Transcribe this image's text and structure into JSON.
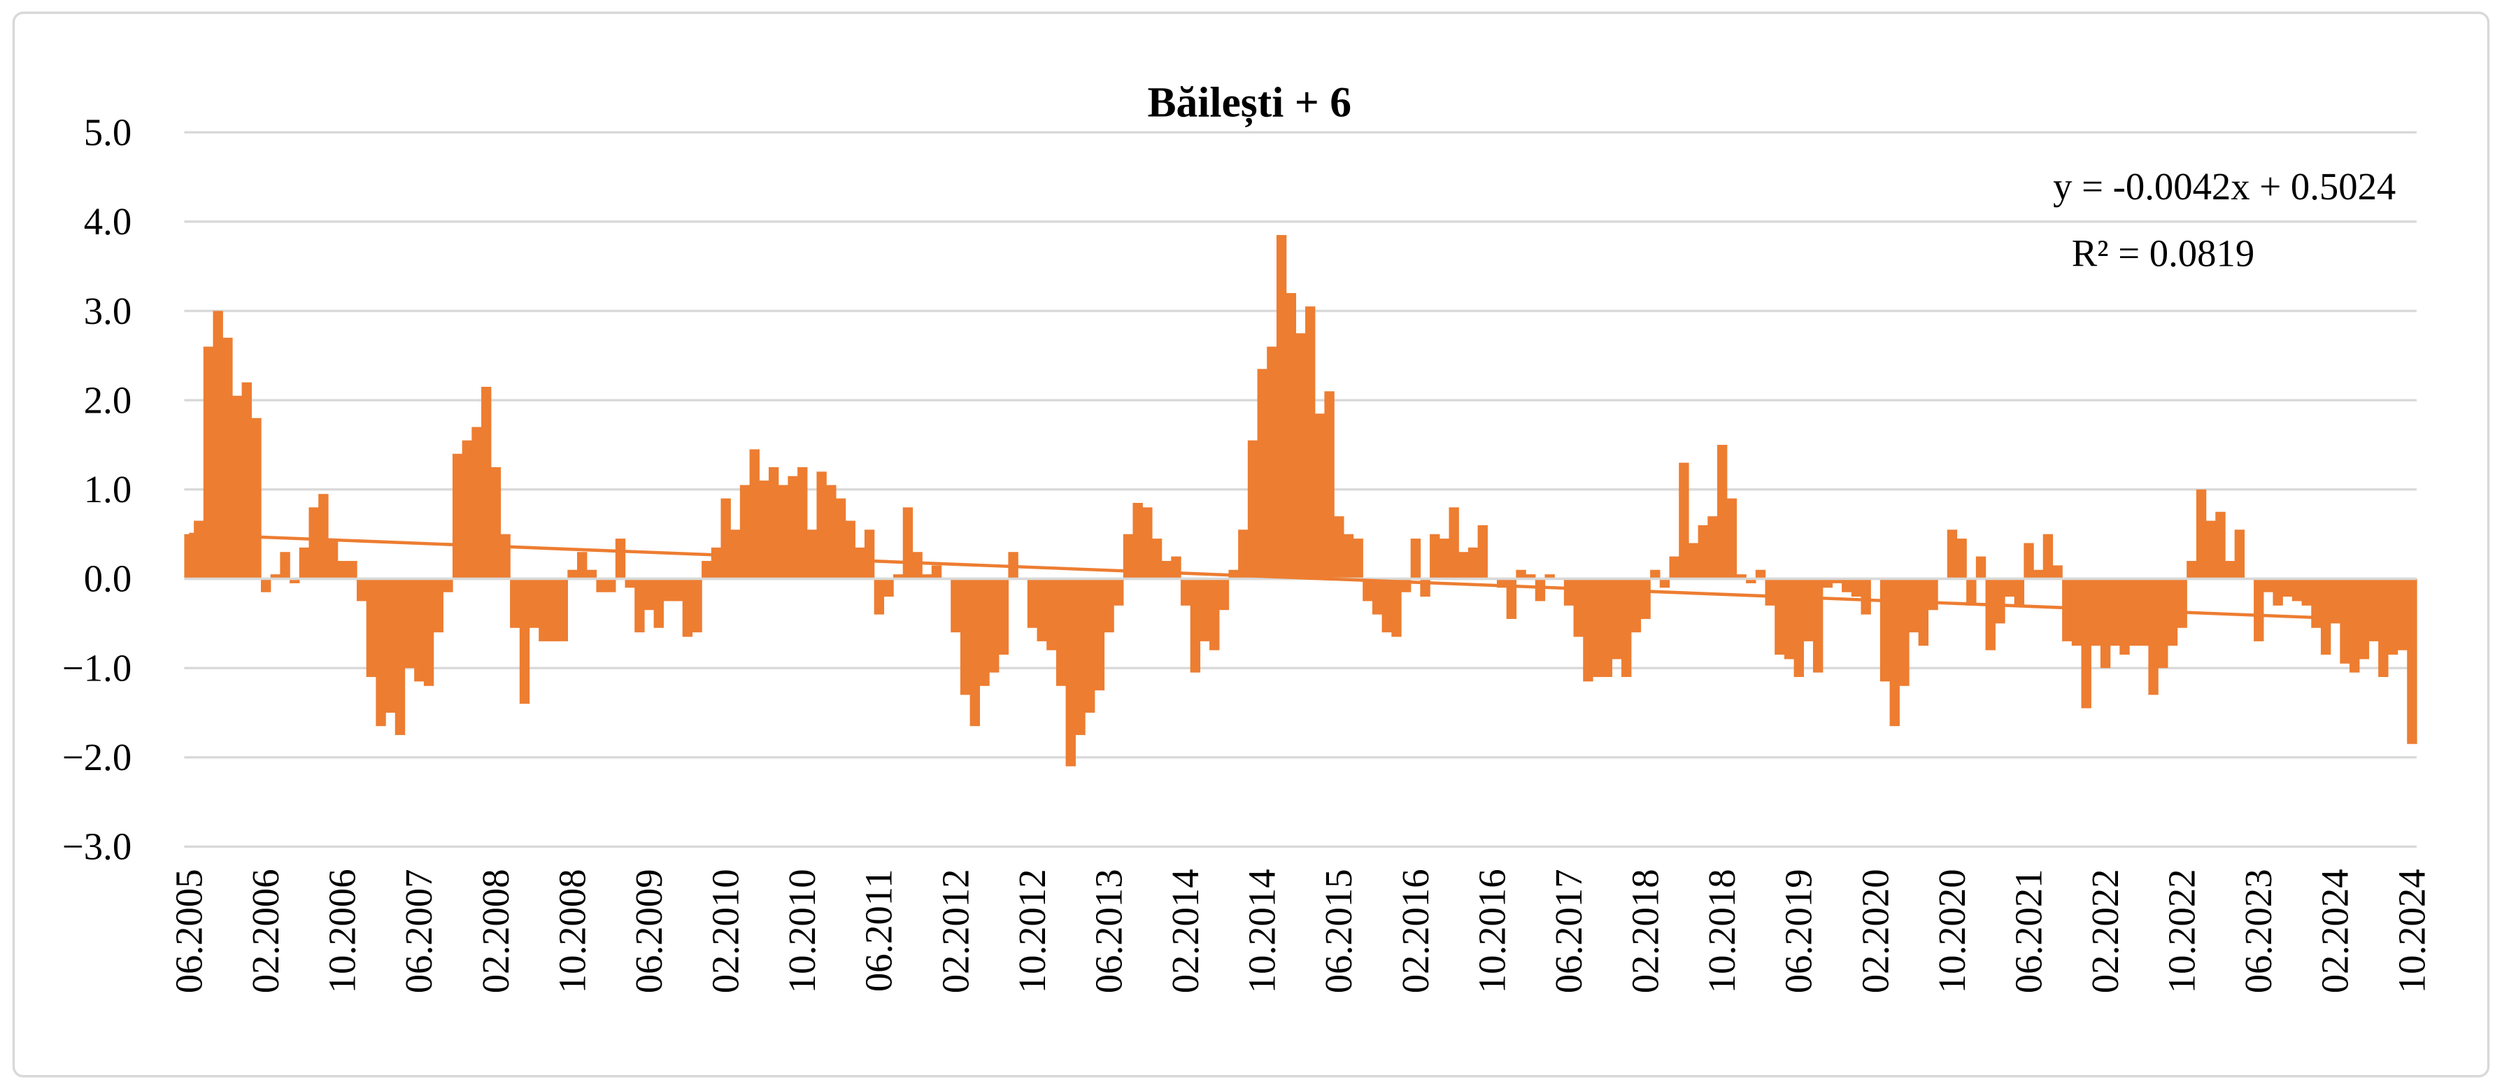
{
  "chart_data": {
    "type": "bar",
    "title": "Băilești + 6",
    "annotations": [
      "y = -0.0042x + 0.5024",
      "R² = 0.0819"
    ],
    "trendline": {
      "slope": -0.0042,
      "intercept": 0.5024
    },
    "color": "#ED7D31",
    "grid": true,
    "ylim": [
      -3,
      5
    ],
    "yticks": [
      {
        "value": -3,
        "label": "−3.0"
      },
      {
        "value": -2,
        "label": "−2.0"
      },
      {
        "value": -1,
        "label": "−1.0"
      },
      {
        "value": 0,
        "label": "0.0"
      },
      {
        "value": 1,
        "label": "1.0"
      },
      {
        "value": 2,
        "label": "2.0"
      },
      {
        "value": 3,
        "label": "3.0"
      },
      {
        "value": 4,
        "label": "4.0"
      },
      {
        "value": 5,
        "label": "5.0"
      }
    ],
    "categories": [
      "06.2005",
      null,
      null,
      null,
      null,
      null,
      null,
      null,
      "02.2006",
      null,
      null,
      null,
      null,
      null,
      null,
      null,
      "10.2006",
      null,
      null,
      null,
      null,
      null,
      null,
      null,
      "06.2007",
      null,
      null,
      null,
      null,
      null,
      null,
      null,
      "02.2008",
      null,
      null,
      null,
      null,
      null,
      null,
      null,
      "10.2008",
      null,
      null,
      null,
      null,
      null,
      null,
      null,
      "06.2009",
      null,
      null,
      null,
      null,
      null,
      null,
      null,
      "02.2010",
      null,
      null,
      null,
      null,
      null,
      null,
      null,
      "10.2010",
      null,
      null,
      null,
      null,
      null,
      null,
      null,
      "06.2011",
      null,
      null,
      null,
      null,
      null,
      null,
      null,
      "02.2012",
      null,
      null,
      null,
      null,
      null,
      null,
      null,
      "10.2012",
      null,
      null,
      null,
      null,
      null,
      null,
      null,
      "06.2013",
      null,
      null,
      null,
      null,
      null,
      null,
      null,
      "02.2014",
      null,
      null,
      null,
      null,
      null,
      null,
      null,
      "10.2014",
      null,
      null,
      null,
      null,
      null,
      null,
      null,
      "06.2015",
      null,
      null,
      null,
      null,
      null,
      null,
      null,
      "02.2016",
      null,
      null,
      null,
      null,
      null,
      null,
      null,
      "10.2016",
      null,
      null,
      null,
      null,
      null,
      null,
      null,
      "06.2017",
      null,
      null,
      null,
      null,
      null,
      null,
      null,
      "02.2018",
      null,
      null,
      null,
      null,
      null,
      null,
      null,
      "10.2018",
      null,
      null,
      null,
      null,
      null,
      null,
      null,
      "06.2019",
      null,
      null,
      null,
      null,
      null,
      null,
      null,
      "02.2020",
      null,
      null,
      null,
      null,
      null,
      null,
      null,
      "10.2020",
      null,
      null,
      null,
      null,
      null,
      null,
      null,
      "06.2021",
      null,
      null,
      null,
      null,
      null,
      null,
      null,
      "02.2022",
      null,
      null,
      null,
      null,
      null,
      null,
      null,
      "10.2022",
      null,
      null,
      null,
      null,
      null,
      null,
      null,
      "06.2023",
      null,
      null,
      null,
      null,
      null,
      null,
      null,
      "02.2024",
      null,
      null,
      null,
      null,
      null,
      null,
      null,
      "10.2024"
    ],
    "values": [
      0.5,
      0.65,
      2.6,
      3.0,
      2.7,
      2.05,
      2.2,
      1.8,
      -0.15,
      0.05,
      0.3,
      -0.05,
      0.35,
      0.8,
      0.95,
      0.45,
      0.2,
      0.2,
      -0.25,
      -1.1,
      -1.65,
      -1.5,
      -1.75,
      -1.0,
      -1.15,
      -1.2,
      -0.6,
      -0.15,
      1.4,
      1.55,
      1.7,
      2.15,
      1.25,
      0.5,
      -0.55,
      -1.4,
      -0.55,
      -0.7,
      -0.7,
      -0.7,
      0.1,
      0.3,
      0.1,
      -0.15,
      -0.15,
      0.45,
      -0.1,
      -0.6,
      -0.35,
      -0.55,
      -0.25,
      -0.25,
      -0.65,
      -0.6,
      0.2,
      0.35,
      0.9,
      0.55,
      1.05,
      1.45,
      1.1,
      1.25,
      1.05,
      1.15,
      1.25,
      0.55,
      1.2,
      1.05,
      0.9,
      0.65,
      0.35,
      0.55,
      -0.4,
      -0.2,
      0.05,
      0.8,
      0.3,
      0.05,
      0.15,
      0.0,
      -0.6,
      -1.3,
      -1.65,
      -1.2,
      -1.05,
      -0.85,
      0.3,
      0.0,
      -0.55,
      -0.7,
      -0.8,
      -1.2,
      -2.1,
      -1.75,
      -1.5,
      -1.25,
      -0.6,
      -0.3,
      0.5,
      0.85,
      0.8,
      0.45,
      0.2,
      0.25,
      -0.3,
      -1.05,
      -0.7,
      -0.8,
      -0.35,
      0.1,
      0.55,
      1.55,
      2.35,
      2.6,
      3.85,
      3.2,
      2.75,
      3.05,
      1.85,
      2.1,
      0.7,
      0.5,
      0.45,
      -0.25,
      -0.4,
      -0.6,
      -0.65,
      -0.15,
      0.45,
      -0.2,
      0.5,
      0.45,
      0.8,
      0.3,
      0.35,
      0.6,
      0.0,
      -0.1,
      -0.45,
      0.1,
      0.05,
      -0.25,
      0.05,
      0.0,
      -0.3,
      -0.65,
      -1.15,
      -1.1,
      -1.1,
      -0.9,
      -1.1,
      -0.6,
      -0.45,
      0.1,
      -0.1,
      0.25,
      1.3,
      0.4,
      0.6,
      0.7,
      1.5,
      0.9,
      0.05,
      -0.05,
      0.1,
      -0.3,
      -0.85,
      -0.9,
      -1.1,
      -0.7,
      -1.05,
      -0.1,
      -0.05,
      -0.15,
      -0.2,
      -0.4,
      0.0,
      -1.15,
      -1.65,
      -1.2,
      -0.6,
      -0.75,
      -0.35,
      0.0,
      0.55,
      0.45,
      -0.3,
      0.25,
      -0.8,
      -0.5,
      -0.2,
      -0.3,
      0.4,
      0.1,
      0.5,
      0.15,
      -0.7,
      -0.75,
      -1.45,
      -0.75,
      -1.0,
      -0.75,
      -0.85,
      -0.75,
      -0.75,
      -1.3,
      -1.0,
      -0.75,
      -0.55,
      0.2,
      1.0,
      0.65,
      0.75,
      0.2,
      0.55,
      0.0,
      -0.7,
      -0.15,
      -0.3,
      -0.2,
      -0.25,
      -0.3,
      -0.55,
      -0.85,
      -0.5,
      -0.95,
      -1.05,
      -0.9,
      -0.7,
      -1.1,
      -0.85,
      -0.8,
      -1.85
    ]
  }
}
